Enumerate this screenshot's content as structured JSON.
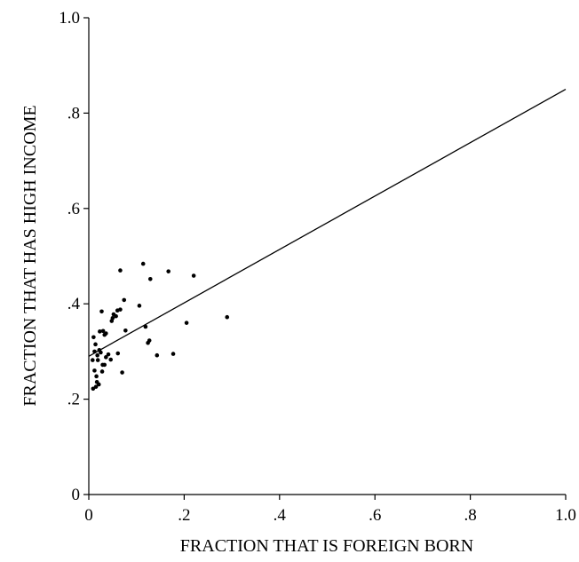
{
  "chart_data": {
    "type": "scatter",
    "title": "",
    "xlabel": "FRACTION THAT IS FOREIGN BORN",
    "ylabel": "FRACTION THAT HAS HIGH INCOME",
    "xlim": [
      0,
      1
    ],
    "ylim": [
      0,
      1
    ],
    "x_ticks": [
      0,
      0.2,
      0.4,
      0.6,
      0.8,
      1.0
    ],
    "x_tick_labels": [
      "0",
      ".2",
      ".4",
      ".6",
      ".8",
      "1.0"
    ],
    "y_ticks": [
      0,
      0.2,
      0.4,
      0.6,
      0.8,
      1.0
    ],
    "y_tick_labels": [
      "0",
      ".2",
      ".4",
      ".6",
      ".8",
      "1.0"
    ],
    "grid": false,
    "legend": "none",
    "fit_line": {
      "x": [
        0,
        1
      ],
      "y": [
        0.29,
        0.85
      ]
    },
    "points": [
      {
        "x": 0.009,
        "y": 0.222
      },
      {
        "x": 0.015,
        "y": 0.226
      },
      {
        "x": 0.017,
        "y": 0.236
      },
      {
        "x": 0.021,
        "y": 0.231
      },
      {
        "x": 0.012,
        "y": 0.26
      },
      {
        "x": 0.016,
        "y": 0.248
      },
      {
        "x": 0.028,
        "y": 0.258
      },
      {
        "x": 0.008,
        "y": 0.282
      },
      {
        "x": 0.019,
        "y": 0.282
      },
      {
        "x": 0.012,
        "y": 0.3
      },
      {
        "x": 0.018,
        "y": 0.292
      },
      {
        "x": 0.014,
        "y": 0.315
      },
      {
        "x": 0.01,
        "y": 0.33
      },
      {
        "x": 0.022,
        "y": 0.303
      },
      {
        "x": 0.025,
        "y": 0.298
      },
      {
        "x": 0.029,
        "y": 0.272
      },
      {
        "x": 0.033,
        "y": 0.272
      },
      {
        "x": 0.036,
        "y": 0.288
      },
      {
        "x": 0.041,
        "y": 0.294
      },
      {
        "x": 0.046,
        "y": 0.283
      },
      {
        "x": 0.033,
        "y": 0.335
      },
      {
        "x": 0.023,
        "y": 0.342
      },
      {
        "x": 0.03,
        "y": 0.343
      },
      {
        "x": 0.036,
        "y": 0.338
      },
      {
        "x": 0.027,
        "y": 0.384
      },
      {
        "x": 0.048,
        "y": 0.364
      },
      {
        "x": 0.05,
        "y": 0.37
      },
      {
        "x": 0.052,
        "y": 0.378
      },
      {
        "x": 0.057,
        "y": 0.374
      },
      {
        "x": 0.06,
        "y": 0.386
      },
      {
        "x": 0.066,
        "y": 0.388
      },
      {
        "x": 0.061,
        "y": 0.296
      },
      {
        "x": 0.07,
        "y": 0.256
      },
      {
        "x": 0.077,
        "y": 0.344
      },
      {
        "x": 0.074,
        "y": 0.408
      },
      {
        "x": 0.066,
        "y": 0.47
      },
      {
        "x": 0.106,
        "y": 0.396
      },
      {
        "x": 0.114,
        "y": 0.484
      },
      {
        "x": 0.119,
        "y": 0.352
      },
      {
        "x": 0.124,
        "y": 0.318
      },
      {
        "x": 0.127,
        "y": 0.323
      },
      {
        "x": 0.129,
        "y": 0.452
      },
      {
        "x": 0.143,
        "y": 0.292
      },
      {
        "x": 0.167,
        "y": 0.468
      },
      {
        "x": 0.177,
        "y": 0.295
      },
      {
        "x": 0.205,
        "y": 0.36
      },
      {
        "x": 0.22,
        "y": 0.459
      },
      {
        "x": 0.29,
        "y": 0.372
      }
    ]
  }
}
